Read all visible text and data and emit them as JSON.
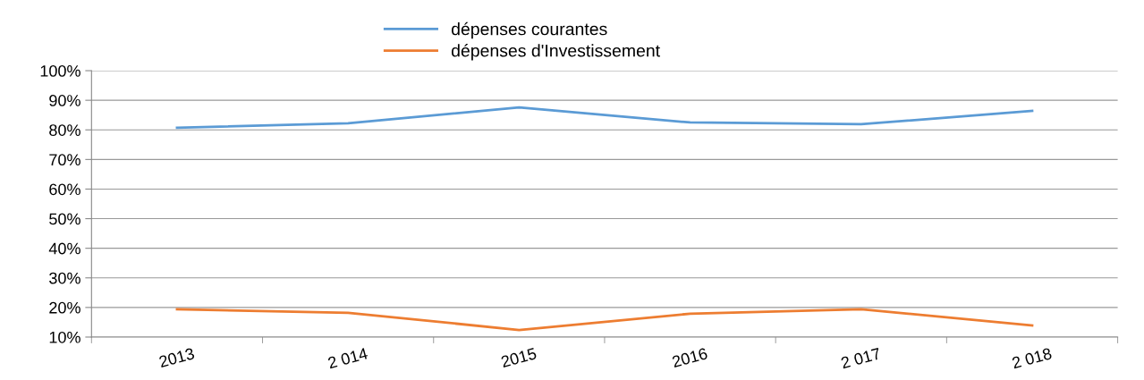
{
  "chart_data": {
    "type": "line",
    "categories": [
      "2013",
      "2 014",
      "2015",
      "2016",
      "2 017",
      "2 018"
    ],
    "series": [
      {
        "name": "dépenses courantes",
        "color": "#5b9bd5",
        "values": [
          80.7,
          82.2,
          87.6,
          82.5,
          81.9,
          86.4
        ]
      },
      {
        "name": "dépenses d'Investissement",
        "color": "#ed7d31",
        "values": [
          19.4,
          18.2,
          12.4,
          17.9,
          19.4,
          13.9
        ]
      }
    ],
    "ylim": [
      10,
      100
    ],
    "yticks": [
      {
        "value": 10,
        "label": "10%"
      },
      {
        "value": 20,
        "label": "20%"
      },
      {
        "value": 30,
        "label": "30%"
      },
      {
        "value": 40,
        "label": "40%"
      },
      {
        "value": 50,
        "label": "50%"
      },
      {
        "value": 60,
        "label": "60%"
      },
      {
        "value": 70,
        "label": "70%"
      },
      {
        "value": 80,
        "label": "80%"
      },
      {
        "value": 90,
        "label": "90%"
      },
      {
        "value": 100,
        "label": "100%"
      }
    ],
    "grid": "y",
    "legend": "top",
    "marker": "none",
    "line_style": "solid"
  }
}
